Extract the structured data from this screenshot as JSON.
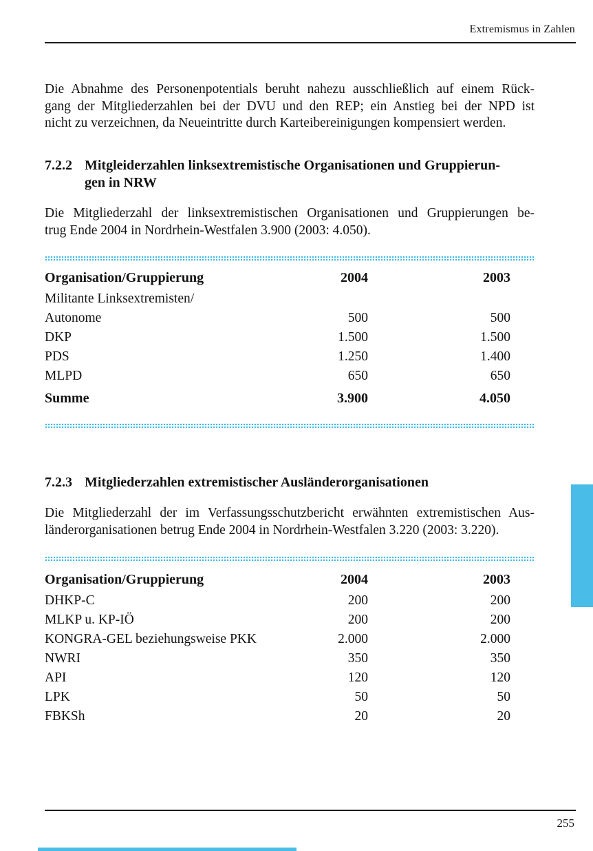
{
  "header": {
    "running_title": "Extremismus in Zahlen"
  },
  "footer": {
    "page_number": "255"
  },
  "intro": {
    "lines": [
      "Die Abnahme des Personenpotentials beruht nahezu ausschließlich auf einem Rück-",
      "gang der Mitgliederzahlen bei der DVU und den REP; ein Anstieg bei der NPD ist",
      "nicht zu verzeichnen, da Neueintritte durch Karteibereinigungen kompensiert werden."
    ]
  },
  "sections": [
    {
      "number": "7.2.2",
      "title_lines": [
        "Mitgleiderzahlen linksextremistische Organisationen und Gruppierun-",
        "gen in NRW"
      ],
      "paragraph_lines": [
        "Die Mitgliederzahl der linksextremistischen Organisationen und Gruppierungen be-",
        "trug Ende 2004 in Nordrhein-Westfalen 3.900 (2003: 4.050)."
      ],
      "table": {
        "columns": [
          "Organisation/Gruppierung",
          "2004",
          "2003"
        ],
        "rows": [
          {
            "org": "Militante Linksextremisten/",
            "v2004": "",
            "v2003": ""
          },
          {
            "org": "Autonome",
            "v2004": "500",
            "v2003": "500"
          },
          {
            "org": "DKP",
            "v2004": "1.500",
            "v2003": "1.500"
          },
          {
            "org": "PDS",
            "v2004": "1.250",
            "v2003": "1.400"
          },
          {
            "org": "MLPD",
            "v2004": "650",
            "v2003": "650"
          }
        ],
        "summary": {
          "org": "Summe",
          "v2004": "3.900",
          "v2003": "4.050"
        }
      }
    },
    {
      "number": "7.2.3",
      "title_lines": [
        "Mitgliederzahlen extremistischer Ausländerorganisationen"
      ],
      "paragraph_lines": [
        "Die Mitgliederzahl der im Verfassungsschutzbericht erwähnten extremistischen Aus-",
        "länderorganisationen betrug Ende 2004 in Nordrhein-Westfalen 3.220 (2003: 3.220)."
      ],
      "table": {
        "columns": [
          "Organisation/Gruppierung",
          "2004",
          "2003"
        ],
        "rows": [
          {
            "org": "DHKP-C",
            "v2004": "200",
            "v2003": "200"
          },
          {
            "org": "MLKP u. KP-IÖ",
            "v2004": "200",
            "v2003": "200"
          },
          {
            "org": "KONGRA-GEL beziehungsweise PKK",
            "v2004": "2.000",
            "v2003": "2.000"
          },
          {
            "org": "NWRI",
            "v2004": "350",
            "v2003": "350"
          },
          {
            "org": "API",
            "v2004": "120",
            "v2003": "120"
          },
          {
            "org": "LPK",
            "v2004": "50",
            "v2003": "50"
          },
          {
            "org": "FBKSh",
            "v2004": "20",
            "v2003": "20"
          }
        ]
      }
    }
  ],
  "colors": {
    "accent_cyan": "#3FB9E5",
    "tab_blue": "#4ABCE8"
  }
}
